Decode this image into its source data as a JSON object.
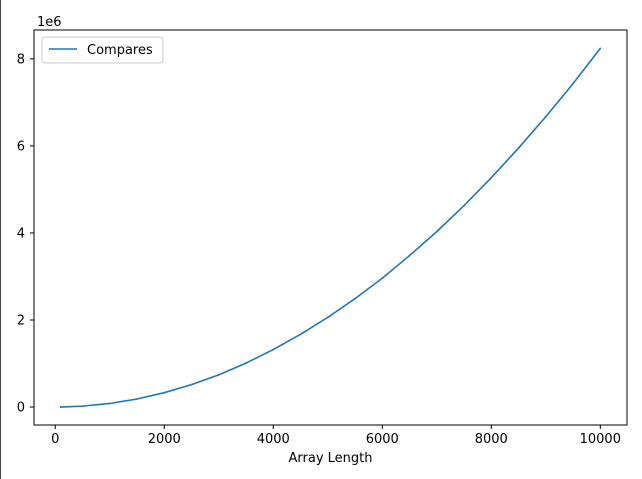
{
  "chart_data": {
    "type": "line",
    "title": "",
    "xlabel": "Array Length",
    "ylabel": "",
    "y_offset_label": "1e6",
    "y_scale": 1000000,
    "xlim": [
      -390,
      10490
    ],
    "ylim": [
      -412500,
      8662500
    ],
    "x_ticks": [
      0,
      2000,
      4000,
      6000,
      8000,
      10000
    ],
    "x_tick_labels": [
      "0",
      "2000",
      "4000",
      "6000",
      "8000",
      "10000"
    ],
    "y_ticks": [
      0,
      2000000,
      4000000,
      6000000,
      8000000
    ],
    "y_tick_labels": [
      "0",
      "2",
      "4",
      "6",
      "8"
    ],
    "grid": false,
    "legend": {
      "placement": "upper-left"
    },
    "series": [
      {
        "name": "Compares",
        "color": "#1f77b4",
        "x": [
          100,
          500,
          1000,
          1500,
          2000,
          2500,
          3000,
          3500,
          4000,
          4500,
          5000,
          5500,
          6000,
          6500,
          7000,
          7500,
          8000,
          8500,
          9000,
          9500,
          10000
        ],
        "y": [
          0,
          21000,
          82000,
          185000,
          330000,
          515000,
          740000,
          1010000,
          1320000,
          1670000,
          2060000,
          2490000,
          2960000,
          3480000,
          4030000,
          4630000,
          5270000,
          5950000,
          6670000,
          7430000,
          8240000
        ]
      }
    ]
  }
}
